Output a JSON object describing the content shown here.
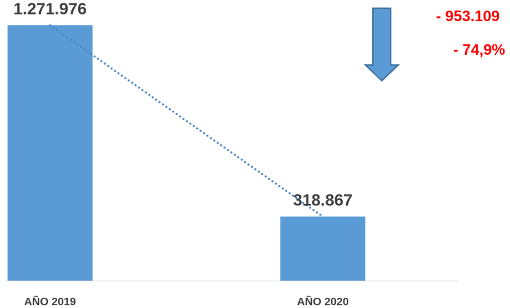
{
  "colors": {
    "bar": "#5b9bd5",
    "trendline": "#4a86c5",
    "arrow_fill": "#5b9bd5",
    "arrow_stroke": "#41719c",
    "annotation": "#ff0000",
    "label": "#404040",
    "axis": "#d9d9d9"
  },
  "chart_data": {
    "type": "bar",
    "categories": [
      "AÑO 2019",
      "AÑO 2020"
    ],
    "values": [
      1271976,
      318867
    ],
    "data_labels": [
      "1.271.976",
      "318.867"
    ],
    "title": "",
    "xlabel": "",
    "ylabel": "",
    "ylim": [
      0,
      1350000
    ],
    "grid": false,
    "legend": "none",
    "trendline": "linear-dotted",
    "annotations": {
      "difference": "- 953.109",
      "percent_change": "- 74,9%",
      "arrow": "down-arrow-icon"
    }
  }
}
